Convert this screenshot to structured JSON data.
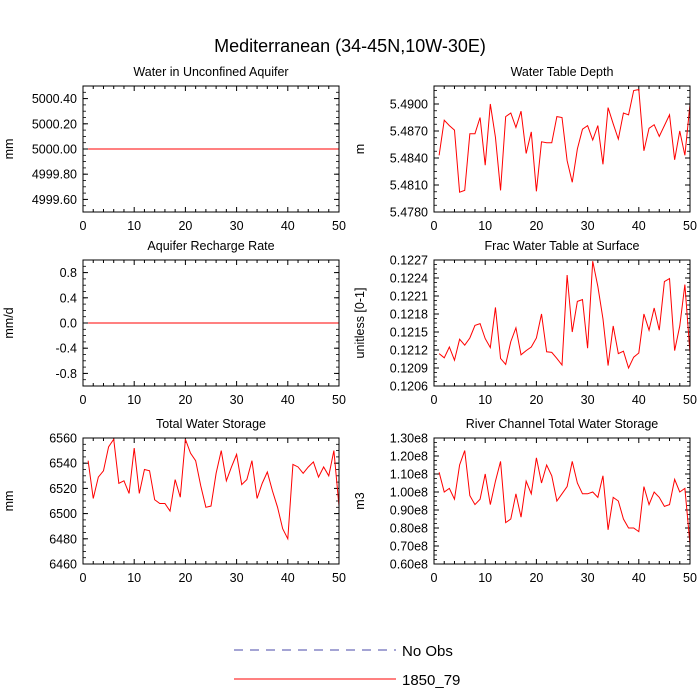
{
  "figure_title": "Mediterranean (34-45N,10W-30E)",
  "legend": [
    {
      "label": "No Obs",
      "color": "#4a4aa8",
      "dashed": true
    },
    {
      "label": "1850_79",
      "color": "#ff0000",
      "dashed": false
    }
  ],
  "chart_data": [
    {
      "type": "line",
      "title": "Water in Unconfined Aquifer",
      "ylabel": "mm",
      "xlim": [
        0,
        50
      ],
      "ylim": [
        4999.5,
        5000.5
      ],
      "xticks": [
        0,
        10,
        20,
        30,
        40,
        50
      ],
      "yticks": [
        "5000.40",
        "5000.20",
        "5000.00",
        "4999.80",
        "4999.60"
      ],
      "ytick_values": [
        5000.4,
        5000.2,
        5000.0,
        4999.8,
        4999.6
      ],
      "series": [
        {
          "name": "1850_79",
          "color": "#ff0000",
          "x_start": 1,
          "x_end": 50,
          "constant": 5000.0
        }
      ]
    },
    {
      "type": "line",
      "title": "Water Table Depth",
      "ylabel": "m",
      "xlim": [
        0,
        50
      ],
      "ylim": [
        5.478,
        5.492
      ],
      "xticks": [
        0,
        10,
        20,
        30,
        40,
        50
      ],
      "yticks": [
        "5.4900",
        "5.4870",
        "5.4840",
        "5.4810",
        "5.4780"
      ],
      "ytick_values": [
        5.49,
        5.487,
        5.484,
        5.481,
        5.478
      ],
      "series": [
        {
          "name": "1850_79",
          "color": "#ff0000",
          "x_start": 1,
          "values": [
            5.4843,
            5.4882,
            5.4876,
            5.4871,
            5.4802,
            5.4804,
            5.4867,
            5.4867,
            5.4885,
            5.4832,
            5.49,
            5.4863,
            5.4804,
            5.4886,
            5.489,
            5.4874,
            5.4892,
            5.4845,
            5.4869,
            5.4803,
            5.4858,
            5.4857,
            5.4857,
            5.4886,
            5.4885,
            5.4837,
            5.4813,
            5.485,
            5.4872,
            5.4876,
            5.486,
            5.4876,
            5.4833,
            5.4896,
            5.4878,
            5.4861,
            5.489,
            5.4888,
            5.4915,
            5.4916,
            5.4848,
            5.4873,
            5.4877,
            5.4864,
            5.4876,
            5.4888,
            5.4838,
            5.487,
            5.4843,
            5.49
          ]
        }
      ]
    },
    {
      "type": "line",
      "title": "Aquifer Recharge Rate",
      "ylabel": "mm/d",
      "xlim": [
        0,
        50
      ],
      "ylim": [
        -1.0,
        1.0
      ],
      "xticks": [
        0,
        10,
        20,
        30,
        40,
        50
      ],
      "yticks": [
        "0.8",
        "0.4",
        "0.0",
        "-0.4",
        "-0.8"
      ],
      "ytick_values": [
        0.8,
        0.4,
        0.0,
        -0.4,
        -0.8
      ],
      "series": [
        {
          "name": "1850_79",
          "color": "#ff0000",
          "x_start": 1,
          "x_end": 50,
          "constant": 0.0
        }
      ]
    },
    {
      "type": "line",
      "title": "Frac Water Table at Surface",
      "ylabel": "unitless [0-1]",
      "xlim": [
        0,
        50
      ],
      "ylim": [
        0.1206,
        0.1227
      ],
      "xticks": [
        0,
        10,
        20,
        30,
        40,
        50
      ],
      "yticks": [
        "0.1227",
        "0.1224",
        "0.1221",
        "0.1218",
        "0.1215",
        "0.1212",
        "0.1209",
        "0.1206"
      ],
      "ytick_values": [
        0.1227,
        0.1224,
        0.1221,
        0.1218,
        0.1215,
        0.1212,
        0.1209,
        0.1206
      ],
      "series": [
        {
          "name": "1850_79",
          "color": "#ff0000",
          "x_start": 1,
          "values": [
            0.12114,
            0.12107,
            0.12125,
            0.12103,
            0.12138,
            0.12128,
            0.1214,
            0.12161,
            0.12164,
            0.12139,
            0.12124,
            0.12191,
            0.12106,
            0.12096,
            0.12134,
            0.12157,
            0.12112,
            0.12119,
            0.12125,
            0.1214,
            0.1218,
            0.12117,
            0.12116,
            0.12106,
            0.12095,
            0.12245,
            0.1215,
            0.12201,
            0.12204,
            0.12123,
            0.12268,
            0.12226,
            0.12172,
            0.12094,
            0.1216,
            0.12114,
            0.12118,
            0.1209,
            0.12108,
            0.12115,
            0.1218,
            0.12153,
            0.1219,
            0.12153,
            0.12234,
            0.12239,
            0.12119,
            0.1216,
            0.12229,
            0.12115
          ]
        }
      ]
    },
    {
      "type": "line",
      "title": "Total Water Storage",
      "ylabel": "mm",
      "xlim": [
        0,
        50
      ],
      "ylim": [
        6460,
        6560
      ],
      "xticks": [
        0,
        10,
        20,
        30,
        40,
        50
      ],
      "yticks": [
        "6560",
        "6540",
        "6520",
        "6500",
        "6480",
        "6460"
      ],
      "ytick_values": [
        6560,
        6540,
        6520,
        6500,
        6480,
        6460
      ],
      "series": [
        {
          "name": "1850_79",
          "color": "#ff0000",
          "x_start": 1,
          "values": [
            6542,
            6512,
            6529,
            6534,
            6553,
            6559,
            6524,
            6526,
            6516,
            6552,
            6516,
            6535,
            6534,
            6511,
            6508,
            6508,
            6502,
            6527,
            6513,
            6559,
            6548,
            6542,
            6522,
            6505,
            6506,
            6532,
            6550,
            6526,
            6537,
            6547,
            6523,
            6527,
            6542,
            6512,
            6524,
            6533,
            6518,
            6505,
            6488,
            6480,
            6539,
            6537,
            6532,
            6537,
            6541,
            6529,
            6537,
            6530,
            6550,
            6506
          ]
        }
      ]
    },
    {
      "type": "line",
      "title": "River Channel Total Water Storage",
      "ylabel": "m3",
      "xlim": [
        0,
        50
      ],
      "ylim": [
        0.6,
        1.3
      ],
      "xticks": [
        0,
        10,
        20,
        30,
        40,
        50
      ],
      "yticks": [
        "1.30e8",
        "1.20e8",
        "1.10e8",
        "1.00e8",
        "0.90e8",
        "0.80e8",
        "0.70e8",
        "0.60e8"
      ],
      "ytick_values": [
        1.3,
        1.2,
        1.1,
        1.0,
        0.9,
        0.8,
        0.7,
        0.6
      ],
      "series": [
        {
          "name": "1850_79",
          "color": "#ff0000",
          "x_start": 1,
          "values": [
            1.11,
            1.0,
            1.02,
            0.96,
            1.15,
            1.23,
            0.98,
            0.93,
            0.96,
            1.1,
            0.93,
            1.06,
            1.17,
            0.83,
            0.85,
            0.99,
            0.86,
            1.06,
            0.99,
            1.19,
            1.05,
            1.15,
            1.09,
            0.95,
            0.99,
            1.03,
            1.17,
            1.05,
            0.99,
            0.99,
            1.0,
            0.97,
            1.09,
            0.79,
            0.97,
            0.95,
            0.85,
            0.8,
            0.8,
            0.78,
            1.03,
            0.93,
            1.0,
            0.97,
            0.92,
            0.93,
            1.07,
            1.0,
            1.02,
            0.71
          ]
        }
      ]
    }
  ]
}
